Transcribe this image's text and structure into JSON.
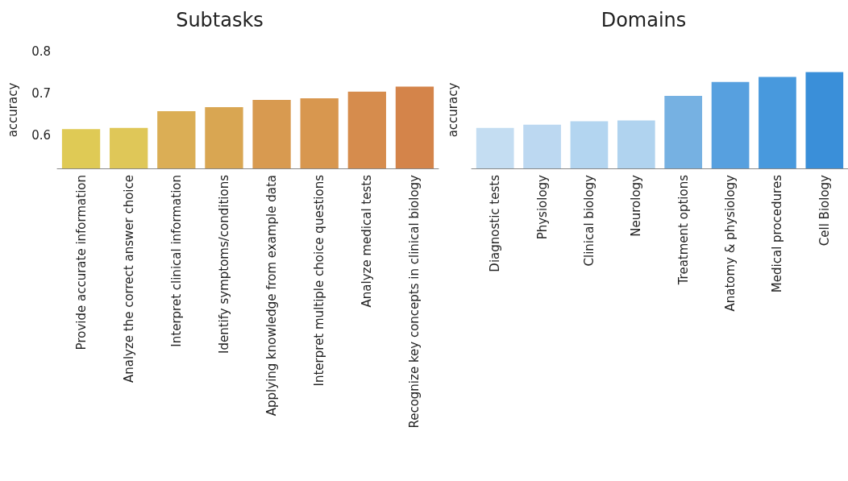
{
  "chart_data": [
    {
      "type": "bar",
      "title": "Subtasks",
      "ylabel": "accuracy",
      "categories": [
        "Provide accurate information",
        "Analyze the correct answer choice",
        "Interpret clinical information",
        "Identify symptoms/conditions",
        "Applying knowledge from example data",
        "Interpret multiple choice questions",
        "Analyze medical tests",
        "Recognize key concepts in clinical biology"
      ],
      "values": [
        0.614,
        0.617,
        0.657,
        0.667,
        0.684,
        0.688,
        0.704,
        0.716
      ],
      "colors": [
        "#dfca55",
        "#dfc758",
        "#dbae55",
        "#d9a652",
        "#d89a50",
        "#d8974f",
        "#d68c4d",
        "#d4844a"
      ],
      "ylim": [
        0.52,
        0.8
      ],
      "yticks": [
        0.6,
        0.7,
        0.8
      ],
      "grid": false
    },
    {
      "type": "bar",
      "title": "Domains",
      "ylabel": "accuracy",
      "categories": [
        "Diagnostic tests",
        "Physiology",
        "Clinical biology",
        "Neurology",
        "Treatment options",
        "Anatomy & physiology",
        "Medical procedures",
        "Cell Biology"
      ],
      "values": [
        0.617,
        0.625,
        0.633,
        0.635,
        0.694,
        0.727,
        0.739,
        0.751
      ],
      "colors": [
        "#c4ddf2",
        "#bcd8f1",
        "#b3d5f0",
        "#b0d3ef",
        "#76b1e2",
        "#57a0df",
        "#4899dd",
        "#3a8fd9"
      ],
      "ylim": [
        0.52,
        0.8
      ],
      "yticks": [
        0.6,
        0.7,
        0.8
      ],
      "tick_labels": "x",
      "grid": false
    }
  ]
}
